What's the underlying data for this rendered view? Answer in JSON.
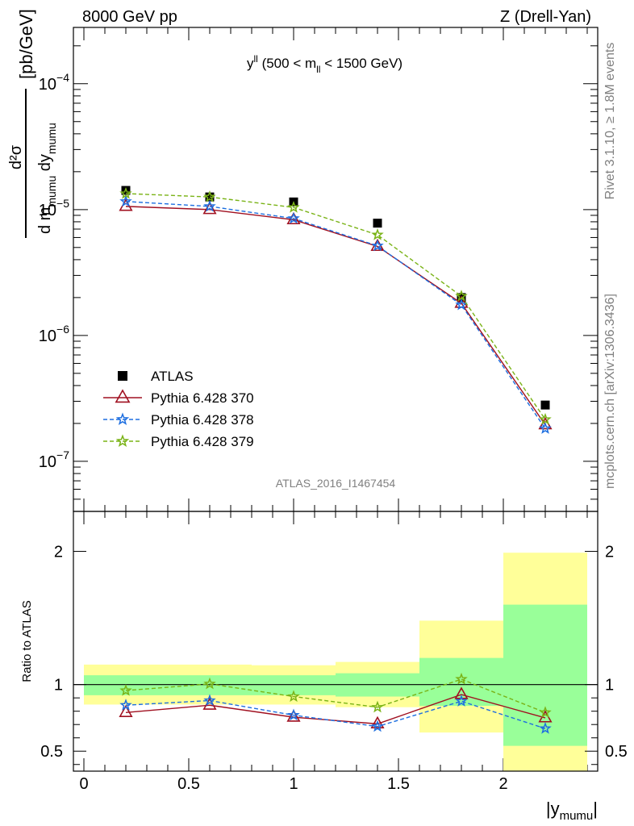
{
  "header": {
    "left": "8000 GeV pp",
    "right": "Z (Drell-Yan)"
  },
  "side_labels": {
    "rivet": "Rivet 3.1.10, ≥ 1.8M events",
    "mcplots": "mcplots.cern.ch [arXiv:1306.3436]"
  },
  "chart_data": [
    {
      "type": "scatter",
      "panel": "main",
      "title": {
        "main": "y",
        "sup": "ll",
        "range_open": " (500 < m",
        "range_sub": "ll",
        "range_close": " < 1500 GeV)"
      },
      "watermark": "ATLAS_2016_I1467454",
      "ylabel": "[pb/GeV]",
      "ylabel_parts": {
        "num": "d²σ",
        "den_dm": "d m",
        "den_sub1": "mumu",
        "den_dy": " dy",
        "den_sub2": "mumu"
      },
      "yscale": "log",
      "xlim": [
        -0.05,
        2.45
      ],
      "ylim": [
        4e-08,
        0.00028
      ],
      "yticks": [
        {
          "base": "10",
          "exp": "−4",
          "value": 0.0001
        },
        {
          "base": "10",
          "exp": "−5",
          "value": 1e-05
        },
        {
          "base": "10",
          "exp": "−6",
          "value": 1e-06
        },
        {
          "base": "10",
          "exp": "−7",
          "value": 1e-07
        }
      ],
      "legend_position": "lower-left",
      "x": [
        0.2,
        0.6,
        1.0,
        1.4,
        1.8,
        2.2
      ],
      "series": [
        {
          "name": "ATLAS",
          "marker": "square",
          "color": "#000000",
          "values": [
            1.42e-05,
            1.26e-05,
            1.15e-05,
            7.8e-06,
            2e-06,
            2.8e-07
          ]
        },
        {
          "name": "Pythia 6.428 370",
          "marker": "open-triangle",
          "line": "solid",
          "color": "#a01020",
          "values": [
            1.06e-05,
            1e-05,
            8.3e-06,
            5.1e-06,
            1.8e-06,
            1.95e-07
          ]
        },
        {
          "name": "Pythia 6.428 378",
          "marker": "star",
          "line": "dashed",
          "color": "#1e6fe0",
          "values": [
            1.16e-05,
            1.06e-05,
            8.5e-06,
            5.15e-06,
            1.75e-06,
            1.82e-07
          ]
        },
        {
          "name": "Pythia 6.428 379",
          "marker": "star",
          "line": "dashed",
          "color": "#7ab317",
          "values": [
            1.34e-05,
            1.26e-05,
            1.04e-05,
            6.3e-06,
            2.05e-06,
            2.15e-07
          ]
        }
      ]
    },
    {
      "type": "scatter",
      "panel": "ratio",
      "ylabel": "Ratio to ATLAS",
      "xlabel_parts": {
        "open": "|y",
        "sub": "mumu",
        "close": "|"
      },
      "xlim": [
        -0.05,
        2.45
      ],
      "ylim": [
        0.35,
        2.3
      ],
      "xticks": [
        {
          "label": "0",
          "value": 0
        },
        {
          "label": "0.5",
          "value": 0.5
        },
        {
          "label": "1",
          "value": 1
        },
        {
          "label": "1.5",
          "value": 1.5
        },
        {
          "label": "2",
          "value": 2
        }
      ],
      "yticks": [
        {
          "label": "0.5",
          "value": 0.5
        },
        {
          "label": "1",
          "value": 1
        },
        {
          "label": "2",
          "value": 2
        }
      ],
      "bands": [
        {
          "x0": 0.0,
          "x1": 0.4,
          "inner": [
            0.92,
            1.07
          ],
          "outer": [
            0.85,
            1.15
          ]
        },
        {
          "x0": 0.4,
          "x1": 0.8,
          "inner": [
            0.92,
            1.07
          ],
          "outer": [
            0.85,
            1.15
          ]
        },
        {
          "x0": 0.8,
          "x1": 1.2,
          "inner": [
            0.92,
            1.07
          ],
          "outer": [
            0.85,
            1.145
          ]
        },
        {
          "x0": 1.2,
          "x1": 1.6,
          "inner": [
            0.91,
            1.085
          ],
          "outer": [
            0.83,
            1.17
          ]
        },
        {
          "x0": 1.6,
          "x1": 2.0,
          "inner": [
            0.84,
            1.2
          ],
          "outer": [
            0.64,
            1.48
          ]
        },
        {
          "x0": 2.0,
          "x1": 2.4,
          "inner": [
            0.54,
            1.6
          ],
          "outer": [
            0.35,
            1.99
          ]
        }
      ],
      "band_colors": {
        "inner": "#99ff99",
        "outer": "#ffff99"
      },
      "x": [
        0.2,
        0.6,
        1.0,
        1.4,
        1.8,
        2.2
      ],
      "series": [
        {
          "name": "Pythia 6.428 370",
          "marker": "open-triangle",
          "line": "solid",
          "color": "#a01020",
          "values": [
            0.79,
            0.845,
            0.755,
            0.705,
            0.925,
            0.75
          ]
        },
        {
          "name": "Pythia 6.428 378",
          "marker": "star",
          "line": "dashed",
          "color": "#1e6fe0",
          "values": [
            0.845,
            0.88,
            0.77,
            0.685,
            0.875,
            0.67
          ]
        },
        {
          "name": "Pythia 6.428 379",
          "marker": "star",
          "line": "dashed",
          "color": "#7ab317",
          "values": [
            0.955,
            1.005,
            0.91,
            0.83,
            1.04,
            0.79
          ]
        }
      ]
    }
  ]
}
